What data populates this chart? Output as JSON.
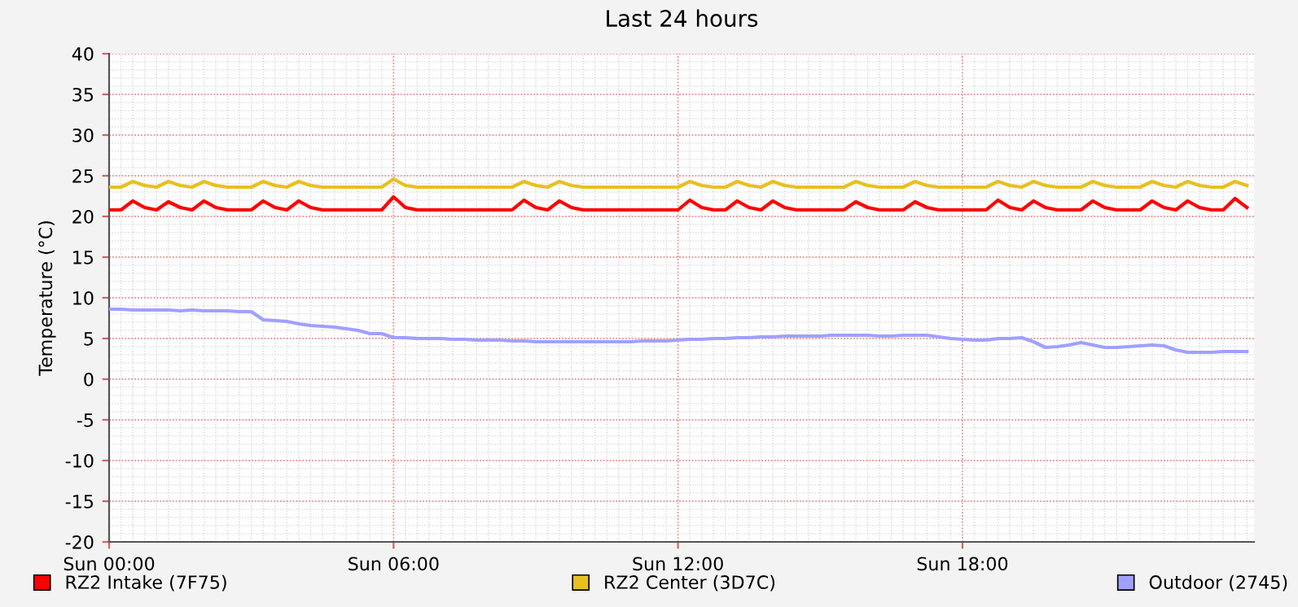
{
  "chart_data": {
    "type": "line",
    "title": "Last 24 hours",
    "ylabel": "Temperature (°C)",
    "categories": [
      "Sun 00:00",
      null,
      null,
      null,
      null,
      null,
      null,
      null,
      null,
      null,
      null,
      null,
      null,
      null,
      null,
      null,
      null,
      null,
      null,
      null,
      null,
      null,
      null,
      null,
      "Sun 06:00",
      null,
      null,
      null,
      null,
      null,
      null,
      null,
      null,
      null,
      null,
      null,
      null,
      null,
      null,
      null,
      null,
      null,
      null,
      null,
      null,
      null,
      null,
      null,
      "Sun 12:00",
      null,
      null,
      null,
      null,
      null,
      null,
      null,
      null,
      null,
      null,
      null,
      null,
      null,
      null,
      null,
      null,
      null,
      null,
      null,
      null,
      null,
      null,
      null,
      "Sun 18:00",
      null,
      null,
      null,
      null,
      null,
      null,
      null,
      null,
      null,
      null,
      null,
      null,
      null,
      null,
      null,
      null,
      null,
      null,
      null,
      null,
      null,
      null,
      null,
      null
    ],
    "series": [
      {
        "name": "RZ2 Intake (7F75)",
        "color": "#ff0000",
        "values": [
          20.8,
          20.8,
          21.9,
          21.1,
          20.8,
          21.8,
          21.1,
          20.8,
          21.9,
          21.1,
          20.8,
          20.8,
          20.8,
          21.9,
          21.1,
          20.8,
          21.9,
          21.1,
          20.8,
          20.8,
          20.8,
          20.8,
          20.8,
          20.8,
          22.4,
          21.1,
          20.8,
          20.8,
          20.8,
          20.8,
          20.8,
          20.8,
          20.8,
          20.8,
          20.8,
          22.0,
          21.1,
          20.8,
          21.9,
          21.1,
          20.8,
          20.8,
          20.8,
          20.8,
          20.8,
          20.8,
          20.8,
          20.8,
          20.8,
          22.0,
          21.1,
          20.8,
          20.8,
          21.9,
          21.1,
          20.8,
          21.9,
          21.1,
          20.8,
          20.8,
          20.8,
          20.8,
          20.8,
          21.8,
          21.1,
          20.8,
          20.8,
          20.8,
          21.8,
          21.1,
          20.8,
          20.8,
          20.8,
          20.8,
          20.8,
          22.0,
          21.1,
          20.8,
          21.9,
          21.1,
          20.8,
          20.8,
          20.8,
          21.9,
          21.1,
          20.8,
          20.8,
          20.8,
          21.9,
          21.1,
          20.8,
          21.9,
          21.1,
          20.8,
          20.8,
          22.2,
          21.1
        ]
      },
      {
        "name": "RZ2 Center (3D7C)",
        "color": "#e8c020",
        "values": [
          23.6,
          23.6,
          24.3,
          23.8,
          23.6,
          24.3,
          23.8,
          23.6,
          24.3,
          23.8,
          23.6,
          23.6,
          23.6,
          24.3,
          23.8,
          23.6,
          24.3,
          23.8,
          23.6,
          23.6,
          23.6,
          23.6,
          23.6,
          23.6,
          24.6,
          23.8,
          23.6,
          23.6,
          23.6,
          23.6,
          23.6,
          23.6,
          23.6,
          23.6,
          23.6,
          24.3,
          23.8,
          23.6,
          24.3,
          23.8,
          23.6,
          23.6,
          23.6,
          23.6,
          23.6,
          23.6,
          23.6,
          23.6,
          23.6,
          24.3,
          23.8,
          23.6,
          23.6,
          24.3,
          23.8,
          23.6,
          24.3,
          23.8,
          23.6,
          23.6,
          23.6,
          23.6,
          23.6,
          24.3,
          23.8,
          23.6,
          23.6,
          23.6,
          24.3,
          23.8,
          23.6,
          23.6,
          23.6,
          23.6,
          23.6,
          24.3,
          23.8,
          23.6,
          24.3,
          23.8,
          23.6,
          23.6,
          23.6,
          24.3,
          23.8,
          23.6,
          23.6,
          23.6,
          24.3,
          23.8,
          23.6,
          24.3,
          23.8,
          23.6,
          23.6,
          24.3,
          23.8
        ]
      },
      {
        "name": "Outdoor (2745)",
        "color": "#a0a0ff",
        "values": [
          8.6,
          8.6,
          8.5,
          8.5,
          8.5,
          8.5,
          8.4,
          8.5,
          8.4,
          8.4,
          8.4,
          8.3,
          8.3,
          7.3,
          7.2,
          7.1,
          6.8,
          6.6,
          6.5,
          6.4,
          6.2,
          6.0,
          5.6,
          5.6,
          5.1,
          5.1,
          5.0,
          5.0,
          5.0,
          4.9,
          4.9,
          4.8,
          4.8,
          4.8,
          4.7,
          4.7,
          4.6,
          4.6,
          4.6,
          4.6,
          4.6,
          4.6,
          4.6,
          4.6,
          4.6,
          4.7,
          4.7,
          4.7,
          4.8,
          4.9,
          4.9,
          5.0,
          5.0,
          5.1,
          5.1,
          5.2,
          5.2,
          5.3,
          5.3,
          5.3,
          5.3,
          5.4,
          5.4,
          5.4,
          5.4,
          5.3,
          5.3,
          5.4,
          5.4,
          5.4,
          5.2,
          5.0,
          4.9,
          4.8,
          4.8,
          5.0,
          5.0,
          5.1,
          4.6,
          3.9,
          4.0,
          4.2,
          4.5,
          4.2,
          3.9,
          3.9,
          4.0,
          4.1,
          4.2,
          4.1,
          3.6,
          3.3,
          3.3,
          3.3,
          3.4,
          3.4,
          3.4
        ]
      }
    ],
    "ylim": [
      -20,
      40
    ],
    "yticks": [
      -20,
      -15,
      -10,
      -5,
      0,
      5,
      10,
      15,
      20,
      25,
      30,
      35,
      40
    ],
    "grid": true,
    "legend": "bottom",
    "line_style": "solid",
    "marker": "none"
  }
}
